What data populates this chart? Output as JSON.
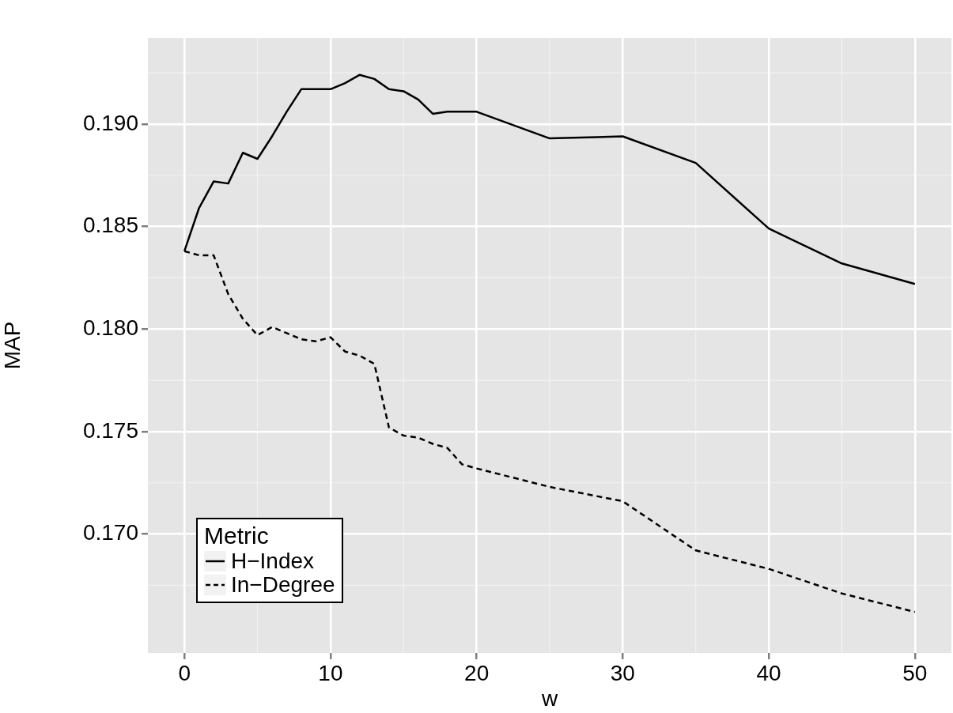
{
  "chart_data": {
    "type": "line",
    "xlabel": "w",
    "ylabel": "MAP",
    "legend_title": "Metric",
    "xlim": [
      -2.5,
      52.5
    ],
    "xticks": [
      0,
      10,
      20,
      30,
      40,
      50
    ],
    "ylim": [
      0.1642,
      0.1942
    ],
    "yticks": [
      {
        "value": 0.17,
        "label": "0.170"
      },
      0.175,
      {
        "value": 0.18,
        "label": "0.180"
      },
      0.185,
      {
        "value": 0.19,
        "label": "0.190"
      }
    ],
    "grid": true,
    "legend": "bottom left",
    "marker": "none",
    "series": [
      {
        "name": "H−Index",
        "color": "#000000",
        "line_style": "solid",
        "x": [
          0,
          1,
          2,
          3,
          4,
          5,
          6,
          7,
          8,
          9,
          10,
          11,
          12,
          13,
          14,
          15,
          16,
          17,
          18,
          19,
          20,
          25,
          30,
          35,
          40,
          45,
          50
        ],
        "values": [
          0.1838,
          0.1859,
          0.1872,
          0.1871,
          0.1886,
          0.1883,
          0.1894,
          0.1906,
          0.1917,
          0.1917,
          0.1917,
          0.192,
          0.1924,
          0.1922,
          0.1917,
          0.1916,
          0.1912,
          0.1905,
          0.1906,
          0.1906,
          0.1906,
          0.1893,
          0.1894,
          0.1881,
          0.1849,
          0.1832,
          0.1822
        ]
      },
      {
        "name": "In−Degree",
        "color": "#000000",
        "line_style": "dashed",
        "x": [
          0,
          1,
          2,
          3,
          4,
          5,
          6,
          7,
          8,
          9,
          10,
          11,
          12,
          13,
          14,
          15,
          16,
          17,
          18,
          19,
          20,
          25,
          30,
          35,
          40,
          45,
          50
        ],
        "values": [
          0.1838,
          0.1836,
          0.1836,
          0.1817,
          0.1805,
          0.1797,
          0.1801,
          0.1798,
          0.1795,
          0.1794,
          0.1796,
          0.1789,
          0.1787,
          0.1783,
          0.1752,
          0.1748,
          0.1747,
          0.1744,
          0.1742,
          0.1734,
          0.1732,
          0.1723,
          0.1716,
          0.1692,
          0.1683,
          0.1671,
          0.1662
        ]
      }
    ]
  }
}
